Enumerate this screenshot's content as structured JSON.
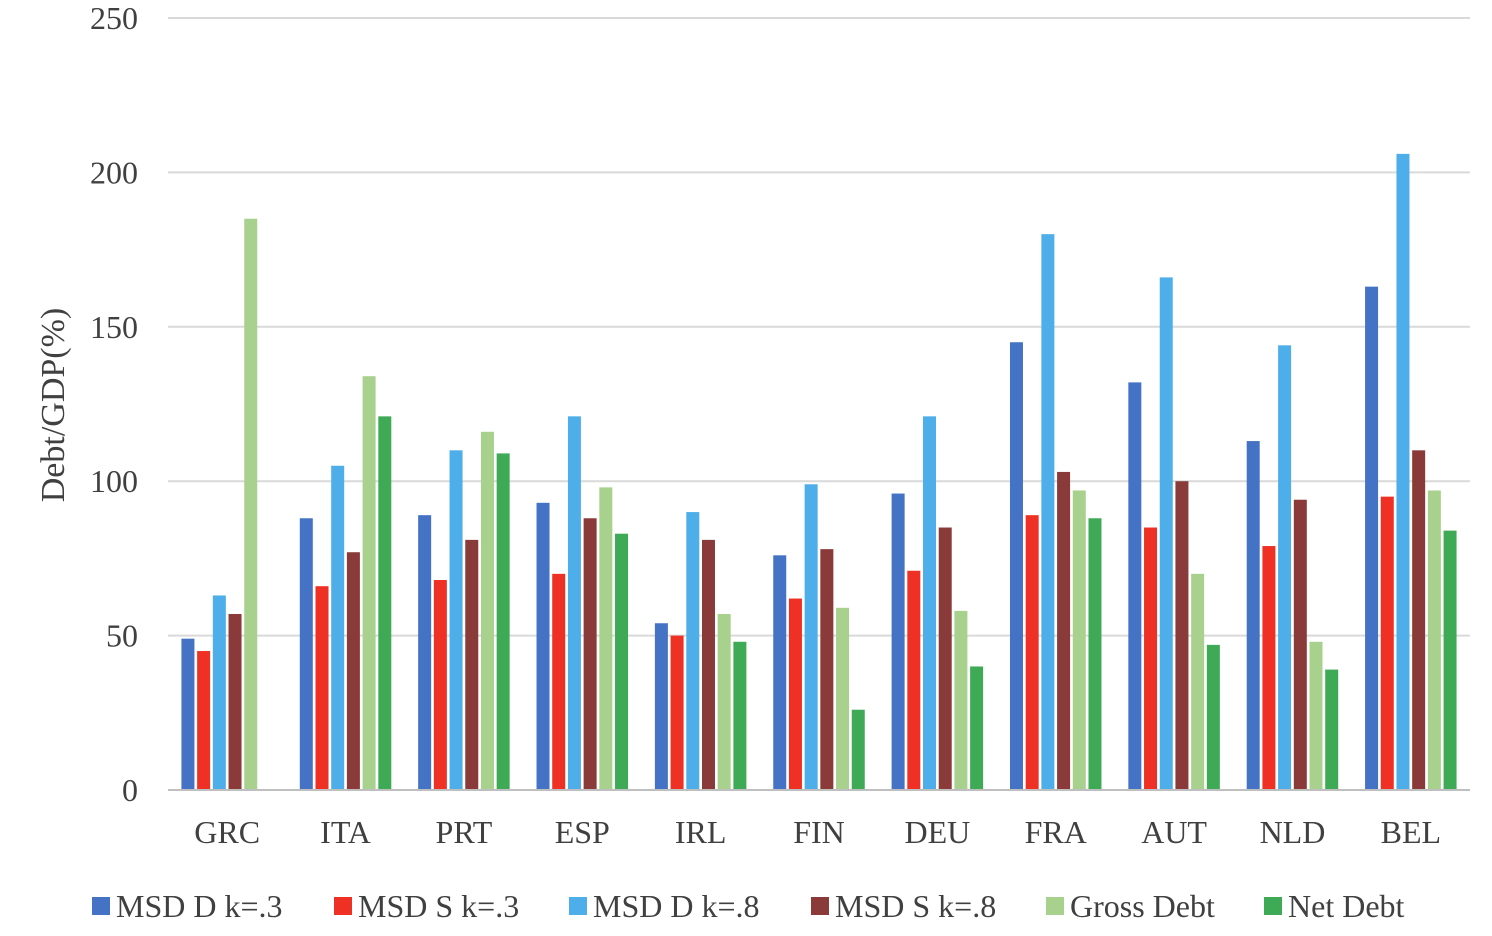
{
  "chart_data": {
    "type": "bar",
    "title": "",
    "xlabel": "",
    "ylabel": "Debt/GDP(%)",
    "ylim": [
      0,
      250
    ],
    "yticks": [
      0,
      50,
      100,
      150,
      200,
      250
    ],
    "grid": "horizontal",
    "legend_position": "bottom",
    "categories": [
      "GRC",
      "ITA",
      "PRT",
      "ESP",
      "IRL",
      "FIN",
      "DEU",
      "FRA",
      "AUT",
      "NLD",
      "BEL"
    ],
    "series": [
      {
        "name": "MSD D k=.3",
        "color": "#4472c4",
        "values": [
          49,
          88,
          89,
          93,
          54,
          76,
          96,
          145,
          132,
          113,
          163
        ]
      },
      {
        "name": "MSD S k=.3",
        "color": "#ee3124",
        "values": [
          45,
          66,
          68,
          70,
          50,
          62,
          71,
          89,
          85,
          79,
          95
        ]
      },
      {
        "name": "MSD D k=.8",
        "color": "#4daeea",
        "values": [
          63,
          105,
          110,
          121,
          90,
          99,
          121,
          180,
          166,
          144,
          206
        ]
      },
      {
        "name": "MSD S k=.8",
        "color": "#8b3a3a",
        "values": [
          57,
          77,
          81,
          88,
          81,
          78,
          85,
          103,
          100,
          94,
          110
        ]
      },
      {
        "name": "Gross Debt",
        "color": "#a9d18e",
        "values": [
          185,
          134,
          116,
          98,
          57,
          59,
          58,
          97,
          70,
          48,
          97
        ]
      },
      {
        "name": "Net Debt",
        "color": "#3faa55",
        "values": [
          null,
          121,
          109,
          83,
          48,
          26,
          40,
          88,
          47,
          39,
          84
        ]
      }
    ]
  }
}
